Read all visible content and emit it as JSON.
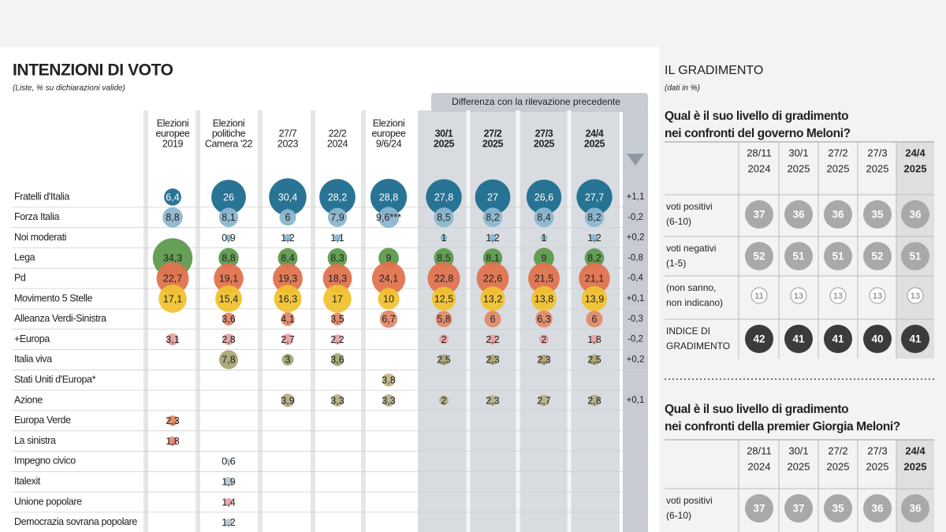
{
  "left": {
    "title": "INTENZIONI DI VOTO",
    "subtitle": "(Liste, % su dichiarazioni valide)",
    "diff_header": "Differenza con la rilevazione precedente",
    "columns": [
      [
        "Elezioni",
        "europee",
        "2019"
      ],
      [
        "Elezioni",
        "politiche",
        "Camera '22"
      ],
      [
        "27/7",
        "2023"
      ],
      [
        "22/2",
        "2024"
      ],
      [
        "Elezioni",
        "europee",
        "9/6/24"
      ],
      [
        "30/1",
        "2025"
      ],
      [
        "27/2",
        "2025"
      ],
      [
        "27/3",
        "2025"
      ],
      [
        "24/4",
        "2025"
      ]
    ],
    "rows": [
      {
        "party": "Fratelli d'Italia",
        "color": "#1d6d8e",
        "cells": [
          {
            "value": 6.4,
            "label": "6,4"
          },
          26,
          {
            "value": 30.4,
            "label": "30,4"
          },
          {
            "value": 28.2,
            "label": "28,2"
          },
          {
            "value": 28.8,
            "label": "28,8"
          },
          {
            "value": 27.8,
            "label": "27,8"
          },
          27,
          {
            "value": 26.6,
            "label": "26,6"
          },
          {
            "value": 27.7,
            "label": "27,7"
          }
        ],
        "diff": "+1,1"
      },
      {
        "party": "Forza Italia",
        "color": "#8db6cf",
        "cells": [
          {
            "value": 8.8,
            "label": "8,8"
          },
          {
            "value": 8.1,
            "label": "8,1"
          },
          6,
          {
            "value": 7.9,
            "label": "7,9"
          },
          {
            "value": 9.6,
            "label": "9,6***"
          },
          {
            "value": 8.5,
            "label": "8,5"
          },
          {
            "value": 8.2,
            "label": "8,2"
          },
          {
            "value": 8.4,
            "label": "8,4"
          },
          {
            "value": 8.2,
            "label": "8,2"
          }
        ],
        "diff": "-0,2"
      },
      {
        "party": "Noi moderati",
        "color": "#8db6cf",
        "cells": [
          null,
          {
            "value": 0.9,
            "label": "0,9"
          },
          {
            "value": 1.2,
            "label": "1,2"
          },
          {
            "value": 1.1,
            "label": "1,1"
          },
          null,
          1,
          {
            "value": 1.2,
            "label": "1,2"
          },
          1,
          {
            "value": 1.2,
            "label": "1,2"
          }
        ],
        "diff": "+0,2"
      },
      {
        "party": "Lega",
        "color": "#5e9a4c",
        "cells": [
          {
            "value": 34.3,
            "label": "34,3"
          },
          {
            "value": 8.8,
            "label": "8,8"
          },
          {
            "value": 8.4,
            "label": "8,4"
          },
          {
            "value": 8.3,
            "label": "8,3"
          },
          9,
          {
            "value": 8.5,
            "label": "8,5"
          },
          {
            "value": 8.1,
            "label": "8,1"
          },
          9,
          {
            "value": 8.2,
            "label": "8,2"
          }
        ],
        "diff": "-0,8"
      },
      {
        "party": "Pd",
        "color": "#e0734f",
        "cells": [
          {
            "value": 22.7,
            "label": "22,7"
          },
          {
            "value": 19.1,
            "label": "19,1"
          },
          {
            "value": 19.3,
            "label": "19,3"
          },
          {
            "value": 18.3,
            "label": "18,3"
          },
          {
            "value": 24.1,
            "label": "24,1"
          },
          {
            "value": 22.8,
            "label": "22,8"
          },
          {
            "value": 22.6,
            "label": "22,6"
          },
          {
            "value": 21.5,
            "label": "21,5"
          },
          {
            "value": 21.1,
            "label": "21,1"
          }
        ],
        "diff": "-0,4"
      },
      {
        "party": "Movimento 5 Stelle",
        "color": "#f0c232",
        "cells": [
          {
            "value": 17.1,
            "label": "17,1"
          },
          {
            "value": 15.4,
            "label": "15,4"
          },
          {
            "value": 16.3,
            "label": "16,3"
          },
          17,
          10,
          {
            "value": 12.5,
            "label": "12,5"
          },
          {
            "value": 13.2,
            "label": "13,2"
          },
          {
            "value": 13.8,
            "label": "13,8"
          },
          {
            "value": 13.9,
            "label": "13,9"
          }
        ],
        "diff": "+0,1"
      },
      {
        "party": "Alleanza Verdi-Sinistra",
        "color": "#e08a6c",
        "cells": [
          null,
          {
            "value": 3.6,
            "label": "3,6"
          },
          {
            "value": 4.1,
            "label": "4,1"
          },
          {
            "value": 3.5,
            "label": "3,5"
          },
          {
            "value": 6.7,
            "label": "6,7"
          },
          {
            "value": 5.8,
            "label": "5,8"
          },
          6,
          {
            "value": 6.3,
            "label": "6,3"
          },
          6
        ],
        "diff": "-0,3"
      },
      {
        "party": "+Europa",
        "color": "#e8a3a3",
        "cells": [
          {
            "value": 3.1,
            "label": "3,1"
          },
          {
            "value": 2.8,
            "label": "2,8"
          },
          {
            "value": 2.7,
            "label": "2,7"
          },
          {
            "value": 2.2,
            "label": "2,2"
          },
          null,
          2,
          {
            "value": 2.2,
            "label": "2,2"
          },
          2,
          {
            "value": 1.8,
            "label": "1,8"
          }
        ],
        "diff": "-0,2"
      },
      {
        "party": "Italia viva",
        "color": "#a9a575",
        "cells": [
          null,
          {
            "value": 7.8,
            "label": "7,8"
          },
          3,
          {
            "value": 3.6,
            "label": "3,6"
          },
          null,
          {
            "value": 2.5,
            "label": "2,5"
          },
          {
            "value": 2.3,
            "label": "2,3"
          },
          {
            "value": 2.3,
            "label": "2,3"
          },
          {
            "value": 2.5,
            "label": "2,5"
          }
        ],
        "diff": "+0,2"
      },
      {
        "party": "Stati Uniti d'Europa*",
        "color": "#c9b98a",
        "cells": [
          null,
          null,
          null,
          null,
          {
            "value": 3.8,
            "label": "3,8"
          },
          null,
          null,
          null,
          null
        ],
        "diff": null
      },
      {
        "party": "Azione",
        "color": "#b4b08a",
        "cells": [
          null,
          null,
          {
            "value": 3.9,
            "label": "3,9"
          },
          {
            "value": 3.3,
            "label": "3,3"
          },
          {
            "value": 3.3,
            "label": "3,3"
          },
          2,
          {
            "value": 2.3,
            "label": "2,3"
          },
          {
            "value": 2.7,
            "label": "2,7"
          },
          {
            "value": 2.8,
            "label": "2,8"
          }
        ],
        "diff": "+0,1"
      },
      {
        "party": "Europa Verde",
        "color": "#e08a6c",
        "cells": [
          {
            "value": 2.3,
            "label": "2,3"
          },
          null,
          null,
          null,
          null,
          null,
          null,
          null,
          null
        ],
        "diff": null
      },
      {
        "party": "La sinistra",
        "color": "#e08a6c",
        "cells": [
          {
            "value": 1.8,
            "label": "1,8"
          },
          null,
          null,
          null,
          null,
          null,
          null,
          null,
          null
        ],
        "diff": null
      },
      {
        "party": "Impegno civico",
        "color": "#b7c8d6",
        "cells": [
          null,
          {
            "value": 0.6,
            "label": "0,6"
          },
          null,
          null,
          null,
          null,
          null,
          null,
          null
        ],
        "diff": null
      },
      {
        "party": "Italexit",
        "color": "#b7c8d6",
        "cells": [
          null,
          {
            "value": 1.9,
            "label": "1,9"
          },
          null,
          null,
          null,
          null,
          null,
          null,
          null
        ],
        "diff": null
      },
      {
        "party": "Unione popolare",
        "color": "#e8a3a3",
        "cells": [
          null,
          {
            "value": 1.4,
            "label": "1,4"
          },
          null,
          null,
          null,
          null,
          null,
          null,
          null
        ],
        "diff": null
      },
      {
        "party": "Democrazia sovrana popolare",
        "color": "#b7c8d6",
        "cells": [
          null,
          {
            "value": 1.2,
            "label": "1,2"
          },
          null,
          null,
          null,
          null,
          null,
          null,
          null
        ],
        "diff": null
      }
    ]
  },
  "right": {
    "title": "IL GRADIMENTO",
    "subtitle": "(dati in %)",
    "sections": [
      {
        "question": [
          "Qual è il suo livello di gradimento",
          "nei confronti del governo Meloni?"
        ],
        "columns": [
          [
            "28/11",
            "2024"
          ],
          [
            "30/1",
            "2025"
          ],
          [
            "27/2",
            "2025"
          ],
          [
            "27/3",
            "2025"
          ],
          [
            "24/4",
            "2025"
          ]
        ],
        "rows": [
          {
            "label": [
              "voti positivi",
              "(6-10)"
            ],
            "values": [
              37,
              36,
              36,
              35,
              36
            ]
          },
          {
            "label": [
              "voti negativi",
              "(1-5)"
            ],
            "values": [
              52,
              51,
              51,
              52,
              51
            ]
          },
          {
            "label": [
              "(non sanno,",
              "non indicano)"
            ],
            "values": [
              11,
              13,
              13,
              13,
              13
            ]
          },
          {
            "label": [
              "INDICE DI",
              "GRADIMENTO"
            ],
            "values": [
              42,
              41,
              41,
              40,
              41
            ]
          }
        ]
      },
      {
        "question": [
          "Qual è il suo livello di gradimento",
          "nei confronti della premier Giorgia Meloni?"
        ],
        "columns": [
          [
            "28/11",
            "2024"
          ],
          [
            "30/1",
            "2025"
          ],
          [
            "27/2",
            "2025"
          ],
          [
            "27/3",
            "2025"
          ],
          [
            "24/4",
            "2025"
          ]
        ],
        "rows": [
          {
            "label": [
              "voti positivi",
              "(6-10)"
            ],
            "values": [
              37,
              37,
              35,
              36,
              36
            ]
          }
        ]
      }
    ]
  }
}
